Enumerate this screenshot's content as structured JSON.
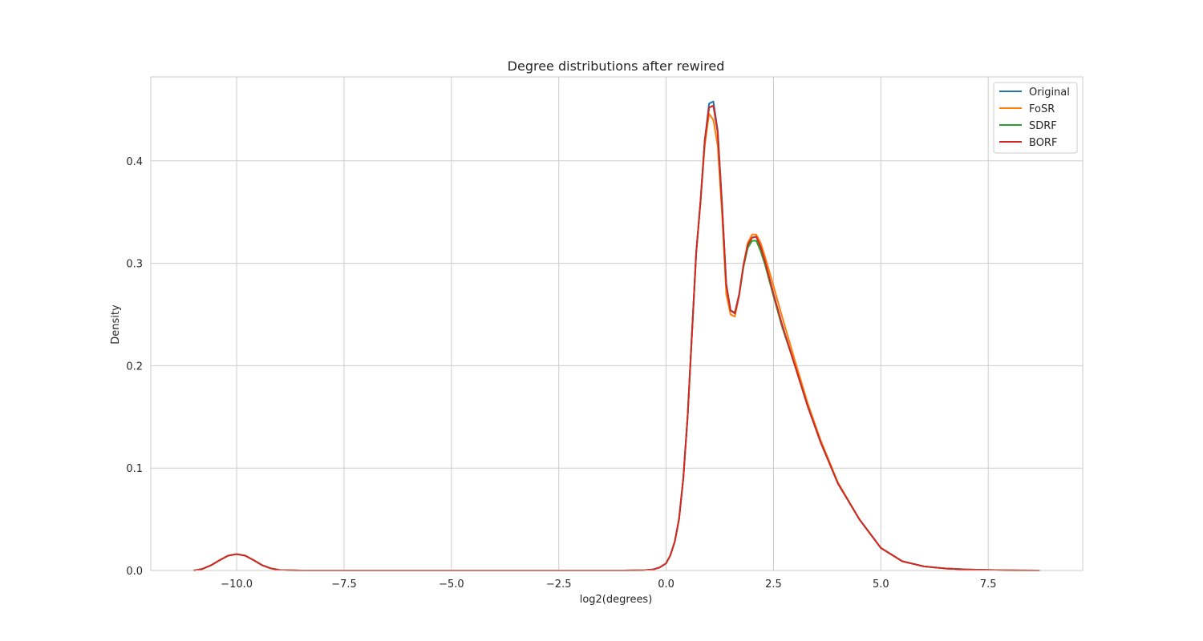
{
  "chart_data": {
    "type": "line",
    "title": "Degree distributions after rewired",
    "xlabel": "log2(degrees)",
    "ylabel": "Density",
    "xlim": [
      -12.0,
      9.7
    ],
    "ylim": [
      0.0,
      0.482
    ],
    "xticks": [
      -10.0,
      -7.5,
      -5.0,
      -2.5,
      0.0,
      2.5,
      5.0,
      7.5
    ],
    "xtick_labels": [
      "−10.0",
      "−7.5",
      "−5.0",
      "−2.5",
      "0.0",
      "2.5",
      "5.0",
      "7.5"
    ],
    "yticks": [
      0.0,
      0.1,
      0.2,
      0.3,
      0.4
    ],
    "ytick_labels": [
      "0.0",
      "0.1",
      "0.2",
      "0.3",
      "0.4"
    ],
    "grid": true,
    "legend_position": "top-right",
    "series": [
      {
        "name": "Original",
        "color": "#1f77b4",
        "x": [
          -11.0,
          -10.8,
          -10.6,
          -10.4,
          -10.2,
          -10.0,
          -9.8,
          -9.6,
          -9.4,
          -9.2,
          -9.0,
          -8.5,
          -8.0,
          -6.0,
          -4.0,
          -2.0,
          -1.0,
          -0.5,
          -0.3,
          -0.15,
          0.0,
          0.1,
          0.2,
          0.3,
          0.4,
          0.5,
          0.6,
          0.7,
          0.8,
          0.9,
          1.0,
          1.1,
          1.2,
          1.3,
          1.4,
          1.5,
          1.6,
          1.7,
          1.8,
          1.9,
          2.0,
          2.1,
          2.2,
          2.3,
          2.5,
          2.7,
          3.0,
          3.3,
          3.6,
          4.0,
          4.5,
          5.0,
          5.5,
          6.0,
          6.5,
          7.0,
          7.5,
          8.0,
          8.7
        ],
        "y": [
          0.0,
          0.0015,
          0.005,
          0.01,
          0.0145,
          0.016,
          0.0145,
          0.01,
          0.005,
          0.002,
          0.0005,
          0.0,
          0.0,
          0.0,
          0.0,
          0.0,
          0.0,
          0.0003,
          0.001,
          0.003,
          0.007,
          0.015,
          0.028,
          0.05,
          0.09,
          0.15,
          0.23,
          0.31,
          0.36,
          0.42,
          0.456,
          0.458,
          0.43,
          0.36,
          0.28,
          0.254,
          0.252,
          0.27,
          0.298,
          0.318,
          0.325,
          0.326,
          0.316,
          0.302,
          0.27,
          0.24,
          0.2,
          0.16,
          0.125,
          0.085,
          0.05,
          0.022,
          0.009,
          0.004,
          0.002,
          0.001,
          0.0005,
          0.0002,
          0.0
        ]
      },
      {
        "name": "FoSR",
        "color": "#ff7f0e",
        "x": [
          -11.0,
          -10.8,
          -10.6,
          -10.4,
          -10.2,
          -10.0,
          -9.8,
          -9.6,
          -9.4,
          -9.2,
          -9.0,
          -8.5,
          -8.0,
          -6.0,
          -4.0,
          -2.0,
          -1.0,
          -0.5,
          -0.3,
          -0.15,
          0.0,
          0.1,
          0.2,
          0.3,
          0.4,
          0.5,
          0.6,
          0.7,
          0.8,
          0.9,
          1.0,
          1.1,
          1.2,
          1.3,
          1.4,
          1.5,
          1.6,
          1.7,
          1.8,
          1.9,
          2.0,
          2.1,
          2.2,
          2.3,
          2.5,
          2.7,
          3.0,
          3.3,
          3.6,
          4.0,
          4.5,
          5.0,
          5.5,
          6.0,
          6.5,
          7.0,
          7.5,
          8.0,
          8.7
        ],
        "y": [
          0.0,
          0.0015,
          0.005,
          0.01,
          0.0145,
          0.016,
          0.0145,
          0.01,
          0.005,
          0.002,
          0.0005,
          0.0,
          0.0,
          0.0,
          0.0,
          0.0,
          0.0,
          0.0003,
          0.001,
          0.003,
          0.007,
          0.015,
          0.028,
          0.05,
          0.09,
          0.15,
          0.23,
          0.31,
          0.36,
          0.415,
          0.446,
          0.44,
          0.415,
          0.35,
          0.27,
          0.25,
          0.248,
          0.268,
          0.298,
          0.32,
          0.328,
          0.328,
          0.32,
          0.307,
          0.278,
          0.248,
          0.205,
          0.163,
          0.127,
          0.086,
          0.05,
          0.022,
          0.009,
          0.004,
          0.002,
          0.001,
          0.0005,
          0.0002,
          0.0
        ]
      },
      {
        "name": "SDRF",
        "color": "#2ca02c",
        "x": [
          -11.0,
          -10.8,
          -10.6,
          -10.4,
          -10.2,
          -10.0,
          -9.8,
          -9.6,
          -9.4,
          -9.2,
          -9.0,
          -8.5,
          -8.0,
          -6.0,
          -4.0,
          -2.0,
          -1.0,
          -0.5,
          -0.3,
          -0.15,
          0.0,
          0.1,
          0.2,
          0.3,
          0.4,
          0.5,
          0.6,
          0.7,
          0.8,
          0.9,
          1.0,
          1.1,
          1.2,
          1.3,
          1.4,
          1.5,
          1.6,
          1.7,
          1.8,
          1.9,
          2.0,
          2.1,
          2.2,
          2.3,
          2.5,
          2.7,
          3.0,
          3.3,
          3.6,
          4.0,
          4.5,
          5.0,
          5.5,
          6.0,
          6.5,
          7.0,
          7.5,
          8.0,
          8.7
        ],
        "y": [
          0.0,
          0.0015,
          0.005,
          0.01,
          0.0145,
          0.016,
          0.0145,
          0.01,
          0.005,
          0.002,
          0.0005,
          0.0,
          0.0,
          0.0,
          0.0,
          0.0,
          0.0,
          0.0003,
          0.001,
          0.003,
          0.007,
          0.015,
          0.028,
          0.05,
          0.09,
          0.15,
          0.23,
          0.31,
          0.36,
          0.42,
          0.452,
          0.454,
          0.428,
          0.358,
          0.279,
          0.254,
          0.251,
          0.269,
          0.296,
          0.315,
          0.322,
          0.322,
          0.312,
          0.299,
          0.268,
          0.238,
          0.2,
          0.16,
          0.125,
          0.085,
          0.05,
          0.022,
          0.009,
          0.004,
          0.002,
          0.001,
          0.0005,
          0.0002,
          0.0
        ]
      },
      {
        "name": "BORF",
        "color": "#d62728",
        "x": [
          -11.0,
          -10.8,
          -10.6,
          -10.4,
          -10.2,
          -10.0,
          -9.8,
          -9.6,
          -9.4,
          -9.2,
          -9.0,
          -8.5,
          -8.0,
          -6.0,
          -4.0,
          -2.0,
          -1.0,
          -0.5,
          -0.3,
          -0.15,
          0.0,
          0.1,
          0.2,
          0.3,
          0.4,
          0.5,
          0.6,
          0.7,
          0.8,
          0.9,
          1.0,
          1.1,
          1.2,
          1.3,
          1.4,
          1.5,
          1.6,
          1.7,
          1.8,
          1.9,
          2.0,
          2.1,
          2.2,
          2.3,
          2.5,
          2.7,
          3.0,
          3.3,
          3.6,
          4.0,
          4.5,
          5.0,
          5.5,
          6.0,
          6.5,
          7.0,
          7.5,
          8.0,
          8.7
        ],
        "y": [
          0.0,
          0.0015,
          0.005,
          0.01,
          0.0145,
          0.016,
          0.0145,
          0.01,
          0.005,
          0.002,
          0.0005,
          0.0,
          0.0,
          0.0,
          0.0,
          0.0,
          0.0,
          0.0003,
          0.001,
          0.003,
          0.007,
          0.015,
          0.028,
          0.05,
          0.09,
          0.15,
          0.23,
          0.31,
          0.36,
          0.42,
          0.452,
          0.454,
          0.428,
          0.358,
          0.279,
          0.254,
          0.251,
          0.269,
          0.298,
          0.318,
          0.325,
          0.326,
          0.316,
          0.302,
          0.27,
          0.24,
          0.2,
          0.16,
          0.125,
          0.085,
          0.05,
          0.022,
          0.009,
          0.004,
          0.002,
          0.001,
          0.0005,
          0.0002,
          0.0
        ]
      }
    ]
  }
}
